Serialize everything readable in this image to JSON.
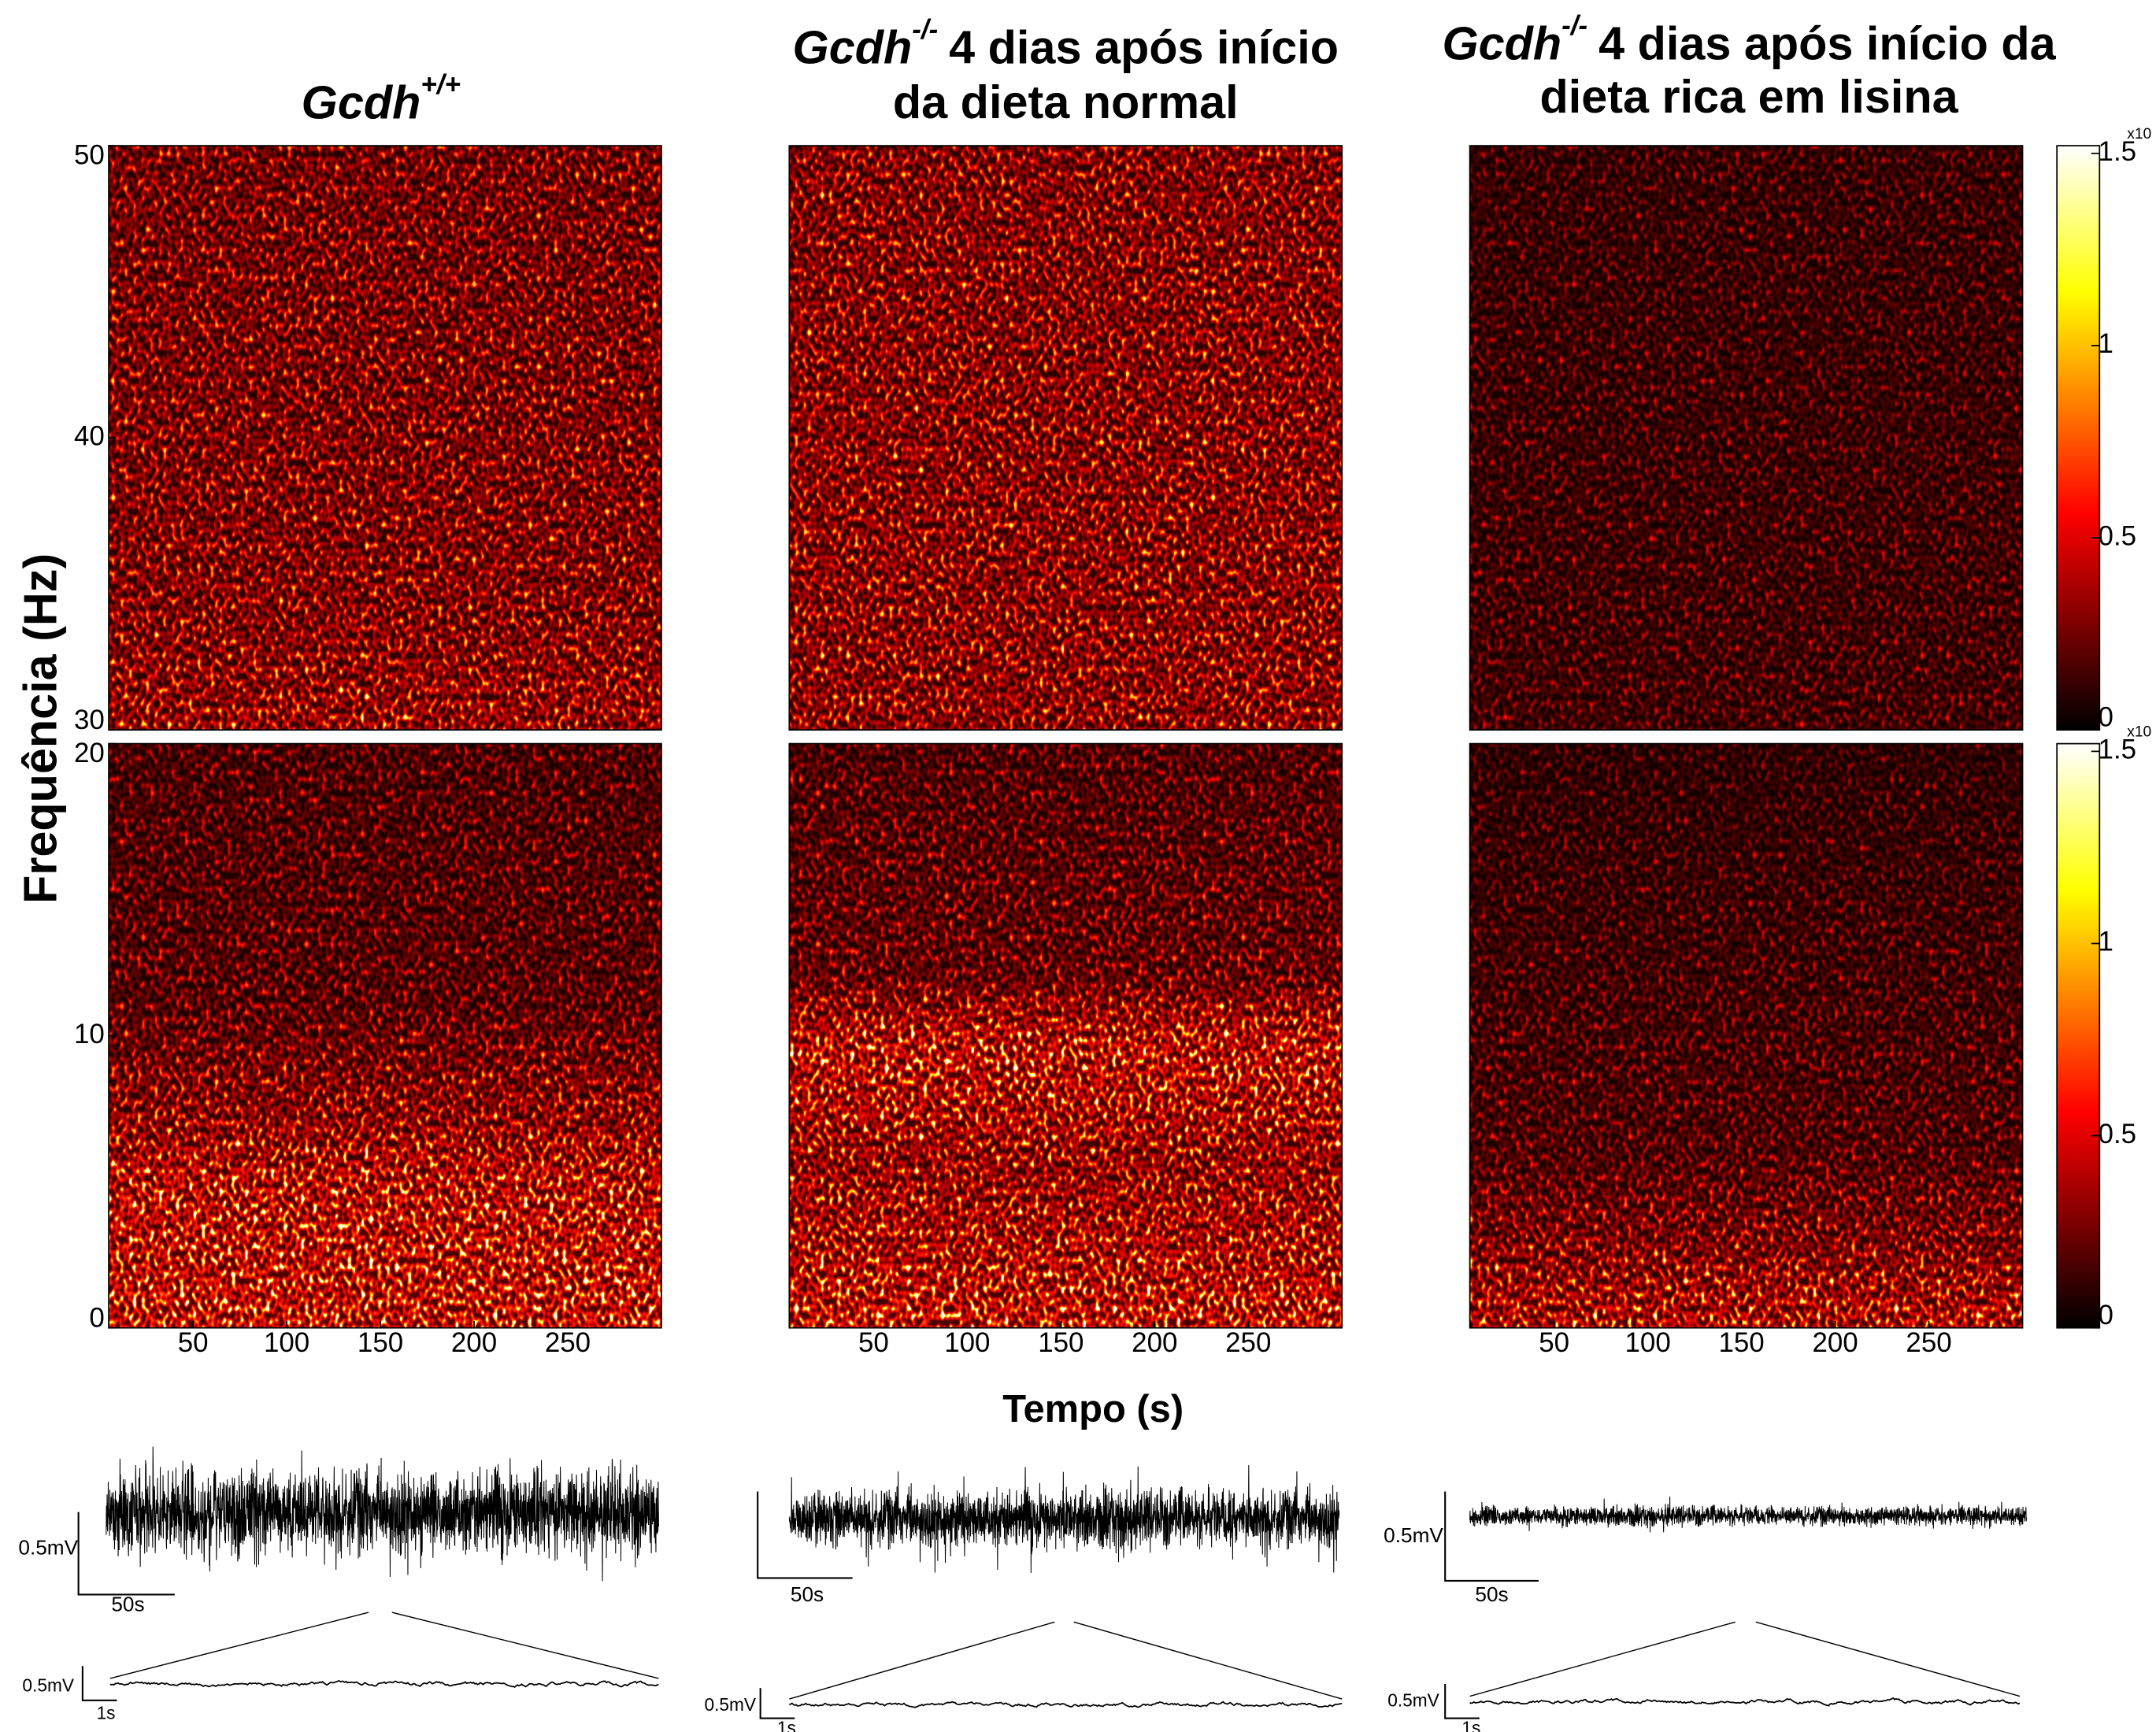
{
  "figure": {
    "panels": [
      {
        "title": {
          "gene": "Gcdh",
          "genotype": "+/+"
        }
      },
      {
        "title": {
          "gene": "Gcdh",
          "genotype": "-/-",
          "text": "4 dias após início",
          "line2": "da dieta normal"
        }
      },
      {
        "title": {
          "gene": "Gcdh",
          "genotype": "-/-",
          "text": "4 dias após início da",
          "line2": "dieta rica em lisina"
        }
      }
    ],
    "ylabel": "Frequência (Hz)",
    "xlabel": "Tempo (s)",
    "xlim": [
      5,
      300
    ],
    "xticks": [
      50,
      100,
      150,
      200,
      250
    ],
    "top_axis": {
      "ylim": [
        30,
        50
      ],
      "yticks": [
        30,
        40,
        50
      ]
    },
    "bottom_axis": {
      "ylim": [
        0,
        20
      ],
      "yticks": [
        0,
        10,
        20
      ]
    },
    "colorbar": {
      "clim": [
        0,
        1.52
      ],
      "ticks": [
        0,
        0.5,
        1,
        1.5
      ],
      "exponent_label": "x10"
    },
    "scale_bars": {
      "amplitude": "0.5mV",
      "time_long": "50s",
      "time_short": "1s"
    }
  }
}
